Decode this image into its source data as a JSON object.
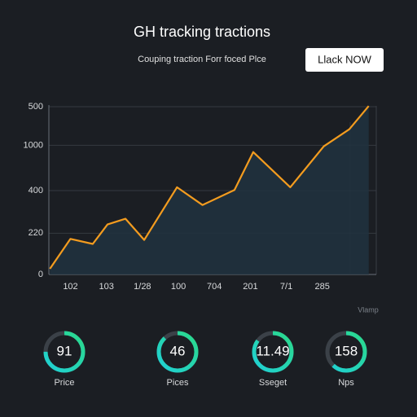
{
  "header": {
    "title": "GH tracking tractions",
    "subtitle": "Couping traction Forr foced Plce",
    "button": "Llack NOW"
  },
  "chart_data": {
    "type": "line",
    "color": "#f39c1f",
    "fill": "#203240",
    "x": [
      0.43,
      1.0,
      1.62,
      2.03,
      2.53,
      3.05,
      3.96,
      4.67,
      5.56,
      6.08,
      7.11,
      8.04,
      8.75,
      9.29
    ],
    "values": [
      17,
      106,
      91,
      149,
      166,
      103,
      260,
      207,
      252,
      365,
      260,
      382,
      433,
      502
    ],
    "xlim": [
      0.4,
      9.5
    ],
    "ylim": [
      0,
      505
    ],
    "xticks": [
      {
        "value": 1,
        "label": "102"
      },
      {
        "value": 2,
        "label": "103"
      },
      {
        "value": 3,
        "label": "1/28"
      },
      {
        "value": 4,
        "label": "100"
      },
      {
        "value": 5,
        "label": "704"
      },
      {
        "value": 6,
        "label": "201"
      },
      {
        "value": 7,
        "label": "7/1"
      },
      {
        "value": 8,
        "label": "285"
      }
    ],
    "yticks": [
      0,
      {
        "value": 123,
        "label": "220"
      },
      {
        "value": 250,
        "label": "400"
      },
      {
        "value": 385,
        "label": "1000"
      },
      {
        "value": 500,
        "label": "500"
      }
    ],
    "grid": true,
    "note": "Vlamp"
  },
  "gauges": [
    {
      "value": 91,
      "label": "Price",
      "progress": 75
    },
    {
      "value": 46,
      "label": "Pices",
      "progress": 88
    },
    {
      "value": 11.49,
      "label": "Sseget",
      "progress": 85
    },
    {
      "value": 158,
      "label": "Nps",
      "progress": 62
    }
  ]
}
